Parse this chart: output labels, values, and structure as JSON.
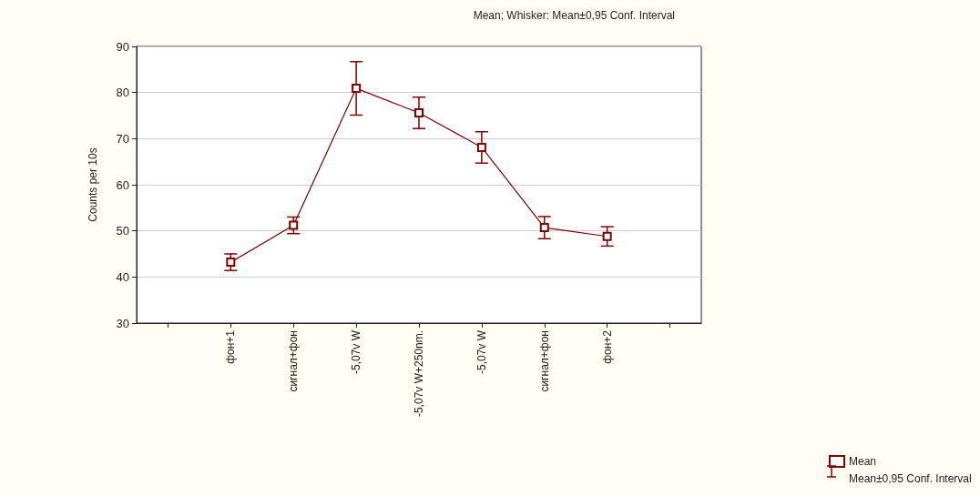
{
  "chart_data": {
    "type": "line",
    "title": "Mean; Whisker: Mean±0,95 Conf. Interval",
    "ylabel": "Counts per 10s",
    "categories": [
      null,
      "фон+1",
      "сигнал+фон",
      "-5,07v W",
      "-5,07v W+250nm.",
      "-5,07v W",
      "сигнал+фон",
      "фон+2",
      null
    ],
    "series": [
      {
        "name": "Mean",
        "color": "#800000",
        "values": [
          null,
          43.2,
          51.2,
          80.9,
          75.6,
          68.1,
          50.7,
          48.8,
          null
        ],
        "errors": [
          null,
          1.8,
          1.8,
          5.8,
          3.4,
          3.4,
          2.4,
          2.1,
          null
        ]
      }
    ],
    "annotations": [
      "Mean±0,95 Conf. Interval"
    ],
    "ylim": [
      30,
      90
    ],
    "yticks": [
      30,
      40,
      50,
      60,
      70,
      80,
      90
    ],
    "grid": "y",
    "legend": "bottom right",
    "marker": "square",
    "line_style": "solid"
  }
}
